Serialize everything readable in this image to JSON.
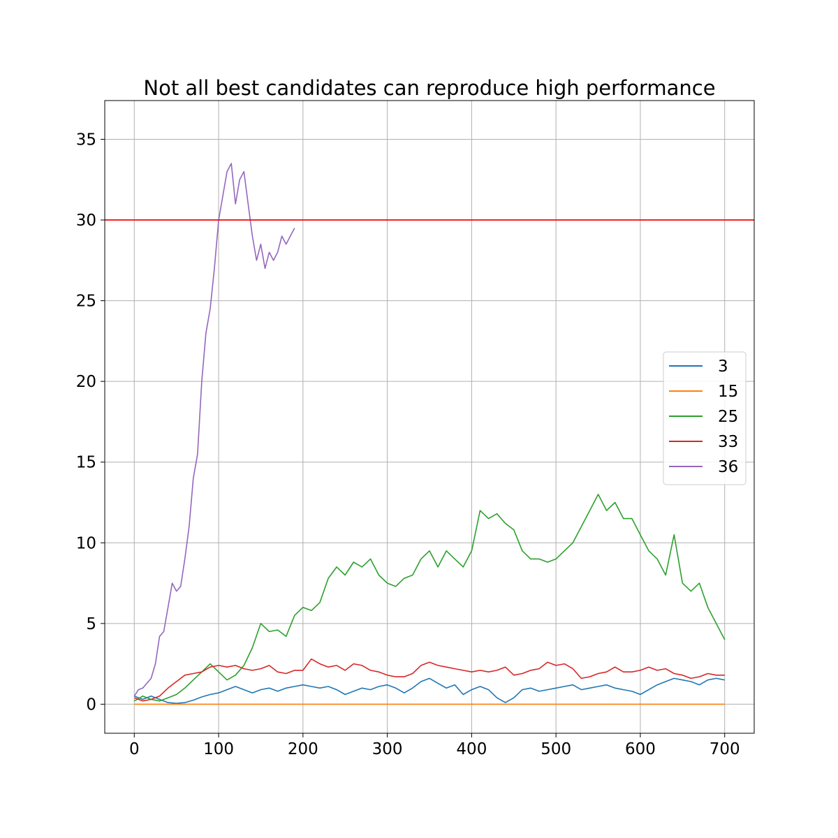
{
  "chart_data": {
    "type": "line",
    "title": "Not all best candidates can reproduce high performance",
    "xlabel": "",
    "ylabel": "",
    "xlim": [
      -35,
      735
    ],
    "ylim": [
      -1.8,
      37.4
    ],
    "xticks": [
      0,
      100,
      200,
      300,
      400,
      500,
      600,
      700
    ],
    "yticks": [
      0,
      5,
      10,
      15,
      20,
      25,
      30,
      35
    ],
    "grid": true,
    "legend_position": "center-right",
    "reference_line": {
      "y": 30,
      "color": "#ff0000"
    },
    "series": [
      {
        "name": "3",
        "color": "#1f77b4",
        "points": [
          [
            0,
            0.5
          ],
          [
            10,
            0.3
          ],
          [
            20,
            0.5
          ],
          [
            30,
            0.3
          ],
          [
            40,
            0.1
          ],
          [
            50,
            0.05
          ],
          [
            60,
            0.1
          ],
          [
            70,
            0.25
          ],
          [
            80,
            0.45
          ],
          [
            90,
            0.6
          ],
          [
            100,
            0.7
          ],
          [
            110,
            0.9
          ],
          [
            120,
            1.1
          ],
          [
            130,
            0.9
          ],
          [
            140,
            0.7
          ],
          [
            150,
            0.9
          ],
          [
            160,
            1.0
          ],
          [
            170,
            0.8
          ],
          [
            180,
            1.0
          ],
          [
            190,
            1.1
          ],
          [
            200,
            1.2
          ],
          [
            210,
            1.1
          ],
          [
            220,
            1.0
          ],
          [
            230,
            1.1
          ],
          [
            240,
            0.9
          ],
          [
            250,
            0.6
          ],
          [
            260,
            0.8
          ],
          [
            270,
            1.0
          ],
          [
            280,
            0.9
          ],
          [
            290,
            1.1
          ],
          [
            300,
            1.2
          ],
          [
            310,
            1.0
          ],
          [
            320,
            0.7
          ],
          [
            330,
            1.0
          ],
          [
            340,
            1.4
          ],
          [
            350,
            1.6
          ],
          [
            360,
            1.3
          ],
          [
            370,
            1.0
          ],
          [
            380,
            1.2
          ],
          [
            390,
            0.6
          ],
          [
            400,
            0.9
          ],
          [
            410,
            1.1
          ],
          [
            420,
            0.9
          ],
          [
            430,
            0.4
          ],
          [
            440,
            0.1
          ],
          [
            450,
            0.4
          ],
          [
            460,
            0.9
          ],
          [
            470,
            1.0
          ],
          [
            480,
            0.8
          ],
          [
            490,
            0.9
          ],
          [
            500,
            1.0
          ],
          [
            510,
            1.1
          ],
          [
            520,
            1.2
          ],
          [
            530,
            0.9
          ],
          [
            540,
            1.0
          ],
          [
            550,
            1.1
          ],
          [
            560,
            1.2
          ],
          [
            570,
            1.0
          ],
          [
            580,
            0.9
          ],
          [
            590,
            0.8
          ],
          [
            600,
            0.6
          ],
          [
            610,
            0.9
          ],
          [
            620,
            1.2
          ],
          [
            630,
            1.4
          ],
          [
            640,
            1.6
          ],
          [
            650,
            1.5
          ],
          [
            660,
            1.4
          ],
          [
            670,
            1.2
          ],
          [
            680,
            1.5
          ],
          [
            690,
            1.6
          ],
          [
            700,
            1.5
          ]
        ]
      },
      {
        "name": "15",
        "color": "#ff7f0e",
        "points": [
          [
            0,
            0.0
          ],
          [
            10,
            0.0
          ],
          [
            20,
            0.0
          ],
          [
            40,
            0.0
          ],
          [
            100,
            0.0
          ],
          [
            200,
            0.0
          ],
          [
            300,
            0.0
          ],
          [
            400,
            0.0
          ],
          [
            500,
            0.0
          ],
          [
            600,
            0.0
          ],
          [
            700,
            0.0
          ]
        ]
      },
      {
        "name": "25",
        "color": "#2ca02c",
        "points": [
          [
            0,
            0.2
          ],
          [
            10,
            0.5
          ],
          [
            20,
            0.3
          ],
          [
            30,
            0.2
          ],
          [
            40,
            0.4
          ],
          [
            50,
            0.6
          ],
          [
            60,
            1.0
          ],
          [
            70,
            1.5
          ],
          [
            80,
            2.0
          ],
          [
            90,
            2.5
          ],
          [
            100,
            2.0
          ],
          [
            110,
            1.5
          ],
          [
            120,
            1.8
          ],
          [
            130,
            2.4
          ],
          [
            140,
            3.5
          ],
          [
            150,
            5.0
          ],
          [
            160,
            4.5
          ],
          [
            170,
            4.6
          ],
          [
            180,
            4.2
          ],
          [
            190,
            5.5
          ],
          [
            200,
            6.0
          ],
          [
            210,
            5.8
          ],
          [
            220,
            6.3
          ],
          [
            230,
            7.8
          ],
          [
            240,
            8.5
          ],
          [
            250,
            8.0
          ],
          [
            260,
            8.8
          ],
          [
            270,
            8.5
          ],
          [
            280,
            9.0
          ],
          [
            290,
            8.0
          ],
          [
            300,
            7.5
          ],
          [
            310,
            7.3
          ],
          [
            320,
            7.8
          ],
          [
            330,
            8.0
          ],
          [
            340,
            9.0
          ],
          [
            350,
            9.5
          ],
          [
            360,
            8.5
          ],
          [
            370,
            9.5
          ],
          [
            380,
            9.0
          ],
          [
            390,
            8.5
          ],
          [
            400,
            9.5
          ],
          [
            410,
            12.0
          ],
          [
            420,
            11.5
          ],
          [
            430,
            11.8
          ],
          [
            440,
            11.2
          ],
          [
            450,
            10.8
          ],
          [
            460,
            9.5
          ],
          [
            470,
            9.0
          ],
          [
            480,
            9.0
          ],
          [
            490,
            8.8
          ],
          [
            500,
            9.0
          ],
          [
            510,
            9.5
          ],
          [
            520,
            10.0
          ],
          [
            530,
            11.0
          ],
          [
            540,
            12.0
          ],
          [
            550,
            13.0
          ],
          [
            560,
            12.0
          ],
          [
            570,
            12.5
          ],
          [
            580,
            11.5
          ],
          [
            590,
            11.5
          ],
          [
            600,
            10.5
          ],
          [
            610,
            9.5
          ],
          [
            620,
            9.0
          ],
          [
            630,
            8.0
          ],
          [
            640,
            10.5
          ],
          [
            650,
            7.5
          ],
          [
            660,
            7.0
          ],
          [
            670,
            7.5
          ],
          [
            680,
            6.0
          ],
          [
            690,
            5.0
          ],
          [
            700,
            4.0
          ]
        ]
      },
      {
        "name": "33",
        "color": "#d62728",
        "points": [
          [
            0,
            0.4
          ],
          [
            10,
            0.2
          ],
          [
            20,
            0.3
          ],
          [
            30,
            0.5
          ],
          [
            40,
            1.0
          ],
          [
            50,
            1.4
          ],
          [
            60,
            1.8
          ],
          [
            70,
            1.9
          ],
          [
            80,
            2.0
          ],
          [
            90,
            2.3
          ],
          [
            100,
            2.4
          ],
          [
            110,
            2.3
          ],
          [
            120,
            2.4
          ],
          [
            130,
            2.2
          ],
          [
            140,
            2.1
          ],
          [
            150,
            2.2
          ],
          [
            160,
            2.4
          ],
          [
            170,
            2.0
          ],
          [
            180,
            1.9
          ],
          [
            190,
            2.1
          ],
          [
            200,
            2.1
          ],
          [
            210,
            2.8
          ],
          [
            220,
            2.5
          ],
          [
            230,
            2.3
          ],
          [
            240,
            2.4
          ],
          [
            250,
            2.1
          ],
          [
            260,
            2.5
          ],
          [
            270,
            2.4
          ],
          [
            280,
            2.1
          ],
          [
            290,
            2.0
          ],
          [
            300,
            1.8
          ],
          [
            310,
            1.7
          ],
          [
            320,
            1.7
          ],
          [
            330,
            1.9
          ],
          [
            340,
            2.4
          ],
          [
            350,
            2.6
          ],
          [
            360,
            2.4
          ],
          [
            370,
            2.3
          ],
          [
            380,
            2.2
          ],
          [
            390,
            2.1
          ],
          [
            400,
            2.0
          ],
          [
            410,
            2.1
          ],
          [
            420,
            2.0
          ],
          [
            430,
            2.1
          ],
          [
            440,
            2.3
          ],
          [
            450,
            1.8
          ],
          [
            460,
            1.9
          ],
          [
            470,
            2.1
          ],
          [
            480,
            2.2
          ],
          [
            490,
            2.6
          ],
          [
            500,
            2.4
          ],
          [
            510,
            2.5
          ],
          [
            520,
            2.2
          ],
          [
            530,
            1.6
          ],
          [
            540,
            1.7
          ],
          [
            550,
            1.9
          ],
          [
            560,
            2.0
          ],
          [
            570,
            2.3
          ],
          [
            580,
            2.0
          ],
          [
            590,
            2.0
          ],
          [
            600,
            2.1
          ],
          [
            610,
            2.3
          ],
          [
            620,
            2.1
          ],
          [
            630,
            2.2
          ],
          [
            640,
            1.9
          ],
          [
            650,
            1.8
          ],
          [
            660,
            1.6
          ],
          [
            670,
            1.7
          ],
          [
            680,
            1.9
          ],
          [
            690,
            1.8
          ],
          [
            700,
            1.8
          ]
        ]
      },
      {
        "name": "36",
        "color": "#9467bd",
        "points": [
          [
            0,
            0.5
          ],
          [
            5,
            0.9
          ],
          [
            10,
            1.0
          ],
          [
            15,
            1.3
          ],
          [
            20,
            1.6
          ],
          [
            25,
            2.5
          ],
          [
            30,
            4.2
          ],
          [
            35,
            4.5
          ],
          [
            40,
            6.0
          ],
          [
            45,
            7.5
          ],
          [
            50,
            7.0
          ],
          [
            55,
            7.3
          ],
          [
            60,
            9.0
          ],
          [
            65,
            11.0
          ],
          [
            70,
            14.0
          ],
          [
            75,
            15.5
          ],
          [
            80,
            20.0
          ],
          [
            85,
            23.0
          ],
          [
            90,
            24.5
          ],
          [
            95,
            27.0
          ],
          [
            100,
            30.0
          ],
          [
            105,
            31.5
          ],
          [
            110,
            33.0
          ],
          [
            115,
            33.5
          ],
          [
            120,
            31.0
          ],
          [
            125,
            32.5
          ],
          [
            130,
            33.0
          ],
          [
            135,
            31.0
          ],
          [
            140,
            29.0
          ],
          [
            145,
            27.5
          ],
          [
            150,
            28.5
          ],
          [
            155,
            27.0
          ],
          [
            160,
            28.0
          ],
          [
            165,
            27.5
          ],
          [
            170,
            28.0
          ],
          [
            175,
            29.0
          ],
          [
            180,
            28.5
          ],
          [
            185,
            29.0
          ],
          [
            190,
            29.5
          ]
        ]
      }
    ]
  }
}
